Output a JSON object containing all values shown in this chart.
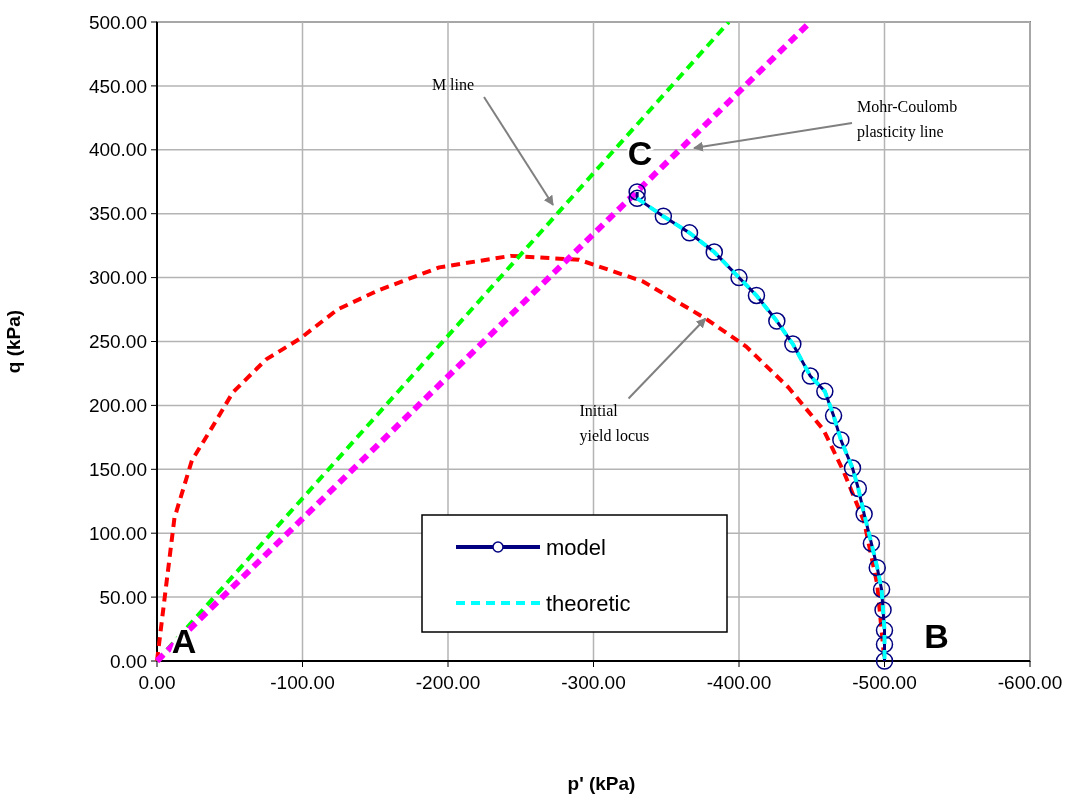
{
  "chart_data": {
    "type": "line",
    "xlabel": "p' (kPa)",
    "ylabel": "q (kPa)",
    "xlim": [
      0,
      -600
    ],
    "ylim": [
      0,
      500
    ],
    "xticks": [
      {
        "value": 0,
        "label": "0.00"
      },
      {
        "value": -100,
        "label": "-100.00"
      },
      {
        "value": -200,
        "label": "-200.00"
      },
      {
        "value": -300,
        "label": "-300.00"
      },
      {
        "value": -400,
        "label": "-400.00"
      },
      {
        "value": -500,
        "label": "-500.00"
      },
      {
        "value": -600,
        "label": "-600.00"
      }
    ],
    "yticks": [
      {
        "value": 0,
        "label": "0.00"
      },
      {
        "value": 50,
        "label": "50.00"
      },
      {
        "value": 100,
        "label": "100.00"
      },
      {
        "value": 150,
        "label": "150.00"
      },
      {
        "value": 200,
        "label": "200.00"
      },
      {
        "value": 250,
        "label": "250.00"
      },
      {
        "value": 300,
        "label": "300.00"
      },
      {
        "value": 350,
        "label": "350.00"
      },
      {
        "value": 400,
        "label": "400.00"
      },
      {
        "value": 450,
        "label": "450.00"
      },
      {
        "value": 500,
        "label": "500.00"
      }
    ],
    "grid": true,
    "legend": "bottom",
    "series": [
      {
        "color": "#ff0000",
        "line_style": "dashed",
        "marker": "none",
        "x": [
          0,
          -5,
          -12,
          -24,
          -38,
          -52,
          -75,
          -98,
          -124,
          -152,
          -194,
          -243,
          -290,
          -334,
          -377,
          -405,
          -434,
          -458,
          -472,
          -486,
          -495,
          -500
        ],
        "values": [
          0,
          47,
          112,
          157,
          183,
          210,
          236,
          252,
          275,
          290,
          308,
          317,
          314,
          297,
          268,
          246,
          214,
          181,
          148,
          109,
          60,
          0
        ]
      },
      {
        "color": "#00ff00",
        "line_style": "dashed",
        "marker": "none",
        "x": [
          0,
          -393
        ],
        "values": [
          0,
          500
        ]
      },
      {
        "color": "#ff00ff",
        "line_style": "dashed",
        "marker": "none",
        "x": [
          0,
          -449
        ],
        "values": [
          0,
          500
        ]
      },
      {
        "name": "model",
        "color": "#000080",
        "line_style": "solid",
        "marker": "circle",
        "x": [
          -330,
          -330,
          -348,
          -366,
          -383,
          -400,
          -412,
          -426,
          -437,
          -449,
          -459,
          -465,
          -470,
          -478,
          -482,
          -486,
          -491,
          -495,
          -498,
          -499,
          -500,
          -500,
          -500
        ],
        "values": [
          367,
          362,
          348,
          335,
          320,
          300,
          286,
          266,
          248,
          223,
          211,
          192,
          173,
          151,
          135,
          115,
          92,
          73,
          56,
          40,
          24,
          13,
          0
        ]
      },
      {
        "name": "theoretic",
        "color": "#00ffff",
        "line_style": "dashed",
        "marker": "none",
        "x": [
          -330,
          -348,
          -366,
          -383,
          -400,
          -412,
          -426,
          -437,
          -449,
          -459,
          -465,
          -470,
          -478,
          -482,
          -486,
          -491,
          -495,
          -498,
          -499,
          -500,
          -500,
          -500
        ],
        "values": [
          362,
          348,
          335,
          320,
          300,
          286,
          266,
          248,
          223,
          211,
          192,
          173,
          151,
          135,
          115,
          92,
          73,
          56,
          40,
          24,
          13,
          0
        ]
      }
    ],
    "annotations": [
      "M line",
      "Mohr-Coulomb\nplasticity line",
      {
        "text": "Initial\nyield locus",
        "x": -377,
        "y": 268
      },
      {
        "text": "A",
        "x": 0,
        "y": 0
      },
      {
        "text": "B",
        "x": -500,
        "y": 0
      },
      {
        "text": "C",
        "x": -330,
        "y": 368
      }
    ]
  }
}
